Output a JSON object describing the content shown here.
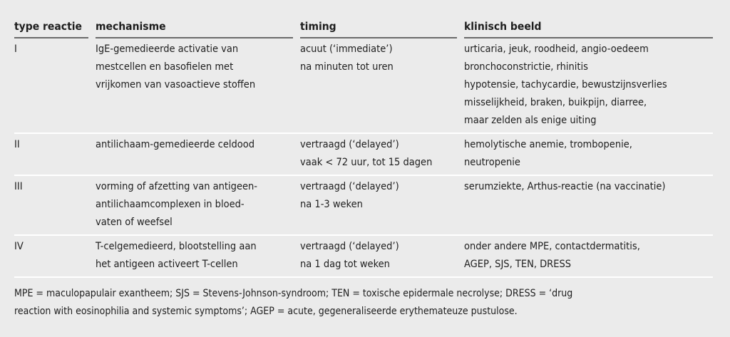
{
  "table": {
    "headers": [
      "type reactie",
      "mechanisme",
      "timing",
      "klinisch beeld"
    ],
    "rows": [
      {
        "type": "I",
        "mechanism": [
          "IgE-gemedieerde activatie van",
          "mestcellen en basofielen met",
          "vrijkomen van vasoactieve stoffen"
        ],
        "timing": [
          "acuut (‘immediate’)",
          "na minuten tot uren"
        ],
        "clinical": [
          "urticaria, jeuk, roodheid, angio-oedeem",
          "bronchoconstrictie, rhinitis",
          "hypotensie, tachycardie, bewustzijnsverlies",
          "misselijkheid, braken, buikpijn, diarree,",
          "maar zelden als enige uiting"
        ]
      },
      {
        "type": "II",
        "mechanism": [
          "antilichaam-gemedieerde celdood"
        ],
        "timing": [
          "vertraagd (‘delayed’)",
          "vaak < 72 uur, tot 15 dagen"
        ],
        "clinical": [
          "hemolytische anemie, trombopenie,",
          "neutropenie"
        ]
      },
      {
        "type": "III",
        "mechanism": [
          "vorming of afzetting van antigeen-",
          "antilichaamcomplexen in bloed-",
          "vaten of weefsel"
        ],
        "timing": [
          "vertraagd (‘delayed’)",
          "na 1-3 weken"
        ],
        "clinical": [
          "serumziekte, Arthus-reactie (na vaccinatie)"
        ]
      },
      {
        "type": "IV",
        "mechanism": [
          "T-celgemedieerd, blootstelling aan",
          "het antigeen activeert T-cellen"
        ],
        "timing": [
          "vertraagd (‘delayed’)",
          "na 1 dag tot weken"
        ],
        "clinical": [
          "onder andere MPE, contactdermatitis,",
          "AGEP, SJS, TEN, DRESS"
        ]
      }
    ]
  },
  "footnote": [
    "MPE = maculopapulair exantheem; SJS = Stevens-Johnson-syndroom; TEN = toxische epidermale necrolyse; DRESS = ‘drug",
    "reaction with eosinophilia and systemic symptoms’; AGEP = acute, gegeneraliseerde erythemateuze pustulose."
  ]
}
